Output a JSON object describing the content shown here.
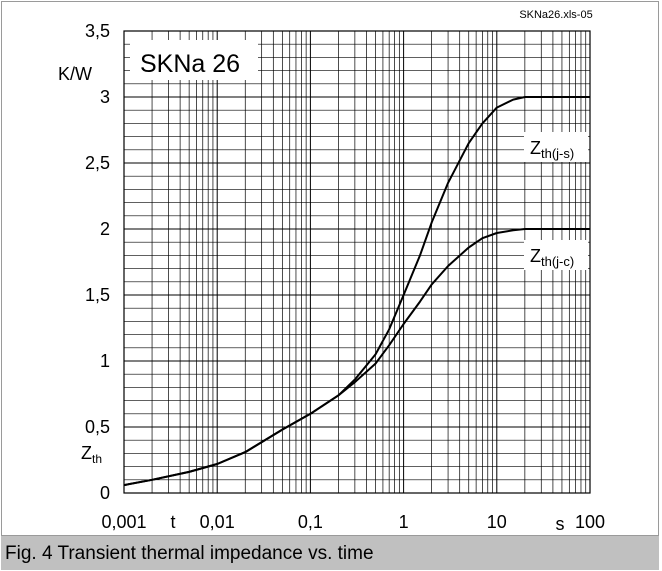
{
  "chart_data": {
    "type": "line",
    "file_tag": "SKNa26.xls-05",
    "inset_title": "SKNa 26",
    "y_unit": "K/W",
    "y_symbol": "Z",
    "y_symbol_sub": "th",
    "x_symbol": "t",
    "x_unit": "s",
    "x_scale": "log",
    "xlim": [
      0.001,
      100
    ],
    "ylim": [
      0,
      3.5
    ],
    "x_ticks": [
      "0,001",
      "0,01",
      "0,1",
      "1",
      "10",
      "100"
    ],
    "y_ticks": [
      "0",
      "0,5",
      "1",
      "1,5",
      "2",
      "2,5",
      "3",
      "3,5"
    ],
    "grid": true,
    "series": [
      {
        "name": "Z",
        "name_sub": "th(j-s)",
        "x": [
          0.001,
          0.002,
          0.005,
          0.01,
          0.02,
          0.05,
          0.1,
          0.2,
          0.3,
          0.5,
          0.7,
          1,
          1.5,
          2,
          3,
          5,
          7,
          10,
          15,
          20,
          50,
          100
        ],
        "y": [
          0.06,
          0.1,
          0.16,
          0.22,
          0.31,
          0.48,
          0.6,
          0.74,
          0.86,
          1.05,
          1.24,
          1.5,
          1.8,
          2.05,
          2.35,
          2.65,
          2.8,
          2.92,
          2.98,
          3.0,
          3.0,
          3.0
        ]
      },
      {
        "name": "Z",
        "name_sub": "th(j-c)",
        "x": [
          0.001,
          0.002,
          0.005,
          0.01,
          0.02,
          0.05,
          0.1,
          0.2,
          0.3,
          0.5,
          0.7,
          1,
          1.5,
          2,
          3,
          5,
          7,
          10,
          15,
          20,
          50,
          100
        ],
        "y": [
          0.06,
          0.1,
          0.16,
          0.22,
          0.31,
          0.48,
          0.6,
          0.74,
          0.84,
          0.98,
          1.12,
          1.28,
          1.45,
          1.58,
          1.72,
          1.86,
          1.93,
          1.97,
          1.99,
          2.0,
          2.0,
          2.0
        ]
      }
    ]
  },
  "caption": "Fig. 4 Transient thermal impedance vs. time"
}
